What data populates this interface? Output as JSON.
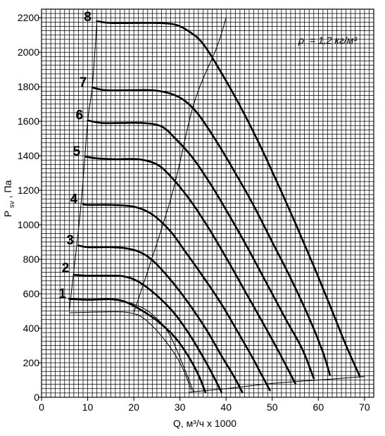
{
  "chart_data": {
    "type": "line",
    "title": "",
    "annotation": {
      "symbol": "ρ",
      "text": "= 1,2 кг/м³"
    },
    "xlabel": "Q, м³/ч x 1000",
    "ylabel": {
      "main": "P",
      "sub": "sv",
      "unit": ", Па"
    },
    "xlim": [
      0,
      72
    ],
    "ylim": [
      0,
      2250
    ],
    "x_ticks": [
      0,
      10,
      20,
      30,
      40,
      50,
      60,
      70
    ],
    "y_ticks": [
      0,
      200,
      400,
      600,
      800,
      1000,
      1200,
      1400,
      1600,
      1800,
      2000,
      2200
    ],
    "grid": true,
    "series": [
      {
        "name": "1",
        "points": [
          [
            6,
            570
          ],
          [
            10,
            565
          ],
          [
            15,
            568
          ],
          [
            18,
            555
          ],
          [
            21,
            515
          ],
          [
            25,
            445
          ],
          [
            29,
            345
          ],
          [
            32,
            230
          ],
          [
            34,
            130
          ],
          [
            35.5,
            30
          ]
        ]
      },
      {
        "name": "2",
        "points": [
          [
            7,
            710
          ],
          [
            10,
            705
          ],
          [
            15,
            705
          ],
          [
            18,
            700
          ],
          [
            21,
            670
          ],
          [
            25,
            590
          ],
          [
            29,
            480
          ],
          [
            32.5,
            345
          ],
          [
            35.5,
            210
          ],
          [
            37.5,
            110
          ],
          [
            39,
            30
          ]
        ]
      },
      {
        "name": "3",
        "points": [
          [
            8,
            880
          ],
          [
            10,
            870
          ],
          [
            15,
            870
          ],
          [
            18,
            865
          ],
          [
            21,
            845
          ],
          [
            24,
            795
          ],
          [
            28,
            680
          ],
          [
            32,
            540
          ],
          [
            36,
            380
          ],
          [
            39,
            240
          ],
          [
            41.5,
            130
          ],
          [
            43.5,
            30
          ]
        ]
      },
      {
        "name": "4",
        "points": [
          [
            9,
            1120
          ],
          [
            10,
            1115
          ],
          [
            15,
            1115
          ],
          [
            20,
            1105
          ],
          [
            24,
            1060
          ],
          [
            28,
            960
          ],
          [
            31,
            850
          ],
          [
            35,
            700
          ],
          [
            39,
            540
          ],
          [
            42.5,
            380
          ],
          [
            45.5,
            240
          ],
          [
            47.5,
            140
          ],
          [
            49.5,
            40
          ]
        ]
      },
      {
        "name": "5",
        "points": [
          [
            9.5,
            1395
          ],
          [
            12,
            1385
          ],
          [
            16,
            1380
          ],
          [
            21,
            1380
          ],
          [
            25,
            1350
          ],
          [
            28,
            1280
          ],
          [
            32,
            1150
          ],
          [
            36,
            990
          ],
          [
            40,
            810
          ],
          [
            44,
            620
          ],
          [
            48,
            430
          ],
          [
            51.5,
            260
          ],
          [
            55,
            80
          ]
        ]
      },
      {
        "name": "6",
        "points": [
          [
            10,
            1605
          ],
          [
            13,
            1590
          ],
          [
            17,
            1590
          ],
          [
            22,
            1590
          ],
          [
            26,
            1570
          ],
          [
            29,
            1500
          ],
          [
            33,
            1380
          ],
          [
            37,
            1220
          ],
          [
            41,
            1040
          ],
          [
            45,
            850
          ],
          [
            49,
            650
          ],
          [
            53,
            450
          ],
          [
            56.5,
            280
          ],
          [
            59,
            110
          ]
        ]
      },
      {
        "name": "7",
        "points": [
          [
            11,
            1795
          ],
          [
            14,
            1780
          ],
          [
            19,
            1780
          ],
          [
            24,
            1780
          ],
          [
            28,
            1760
          ],
          [
            31,
            1720
          ],
          [
            34,
            1640
          ],
          [
            38,
            1480
          ],
          [
            42,
            1300
          ],
          [
            46,
            1110
          ],
          [
            50,
            900
          ],
          [
            54,
            690
          ],
          [
            58,
            460
          ],
          [
            61,
            260
          ],
          [
            62.5,
            130
          ]
        ]
      },
      {
        "name": "8",
        "points": [
          [
            12,
            2180
          ],
          [
            15,
            2170
          ],
          [
            20,
            2170
          ],
          [
            25,
            2170
          ],
          [
            29,
            2160
          ],
          [
            32,
            2120
          ],
          [
            35,
            2050
          ],
          [
            39,
            1880
          ],
          [
            43,
            1690
          ],
          [
            47,
            1480
          ],
          [
            51,
            1250
          ],
          [
            55,
            1010
          ],
          [
            59,
            760
          ],
          [
            63,
            500
          ],
          [
            66,
            300
          ],
          [
            69,
            120
          ]
        ]
      }
    ],
    "efficiency_lines": [
      {
        "points": [
          [
            6,
            500
          ],
          [
            8.5,
            1100
          ],
          [
            10,
            1600
          ],
          [
            11,
            1800
          ],
          [
            12,
            2180
          ]
        ]
      },
      {
        "points": [
          [
            20,
            490
          ],
          [
            28,
            1150
          ],
          [
            33,
            1700
          ],
          [
            38,
            2030
          ],
          [
            40,
            2200
          ]
        ]
      },
      {
        "points": [
          [
            6,
            490
          ],
          [
            15,
            495
          ],
          [
            19,
            490
          ],
          [
            22,
            460
          ],
          [
            26,
            355
          ],
          [
            30,
            200
          ],
          [
            32.5,
            40
          ]
        ]
      },
      {
        "points": [
          [
            32,
            30
          ],
          [
            40,
            50
          ],
          [
            50,
            80
          ],
          [
            60,
            100
          ],
          [
            70,
            120
          ]
        ]
      },
      {
        "points": [
          [
            15,
            570
          ],
          [
            20,
            540
          ],
          [
            24,
            480
          ],
          [
            28,
            350
          ],
          [
            33,
            30
          ]
        ]
      }
    ],
    "curve_label_positions": [
      {
        "name": "1",
        "x": 4.5,
        "y": 600
      },
      {
        "name": "2",
        "x": 5.2,
        "y": 750
      },
      {
        "name": "3",
        "x": 6.2,
        "y": 910
      },
      {
        "name": "4",
        "x": 7.0,
        "y": 1150
      },
      {
        "name": "5",
        "x": 7.6,
        "y": 1425
      },
      {
        "name": "6",
        "x": 8.2,
        "y": 1635
      },
      {
        "name": "7",
        "x": 9.0,
        "y": 1825
      },
      {
        "name": "8",
        "x": 10.0,
        "y": 2205
      }
    ]
  }
}
